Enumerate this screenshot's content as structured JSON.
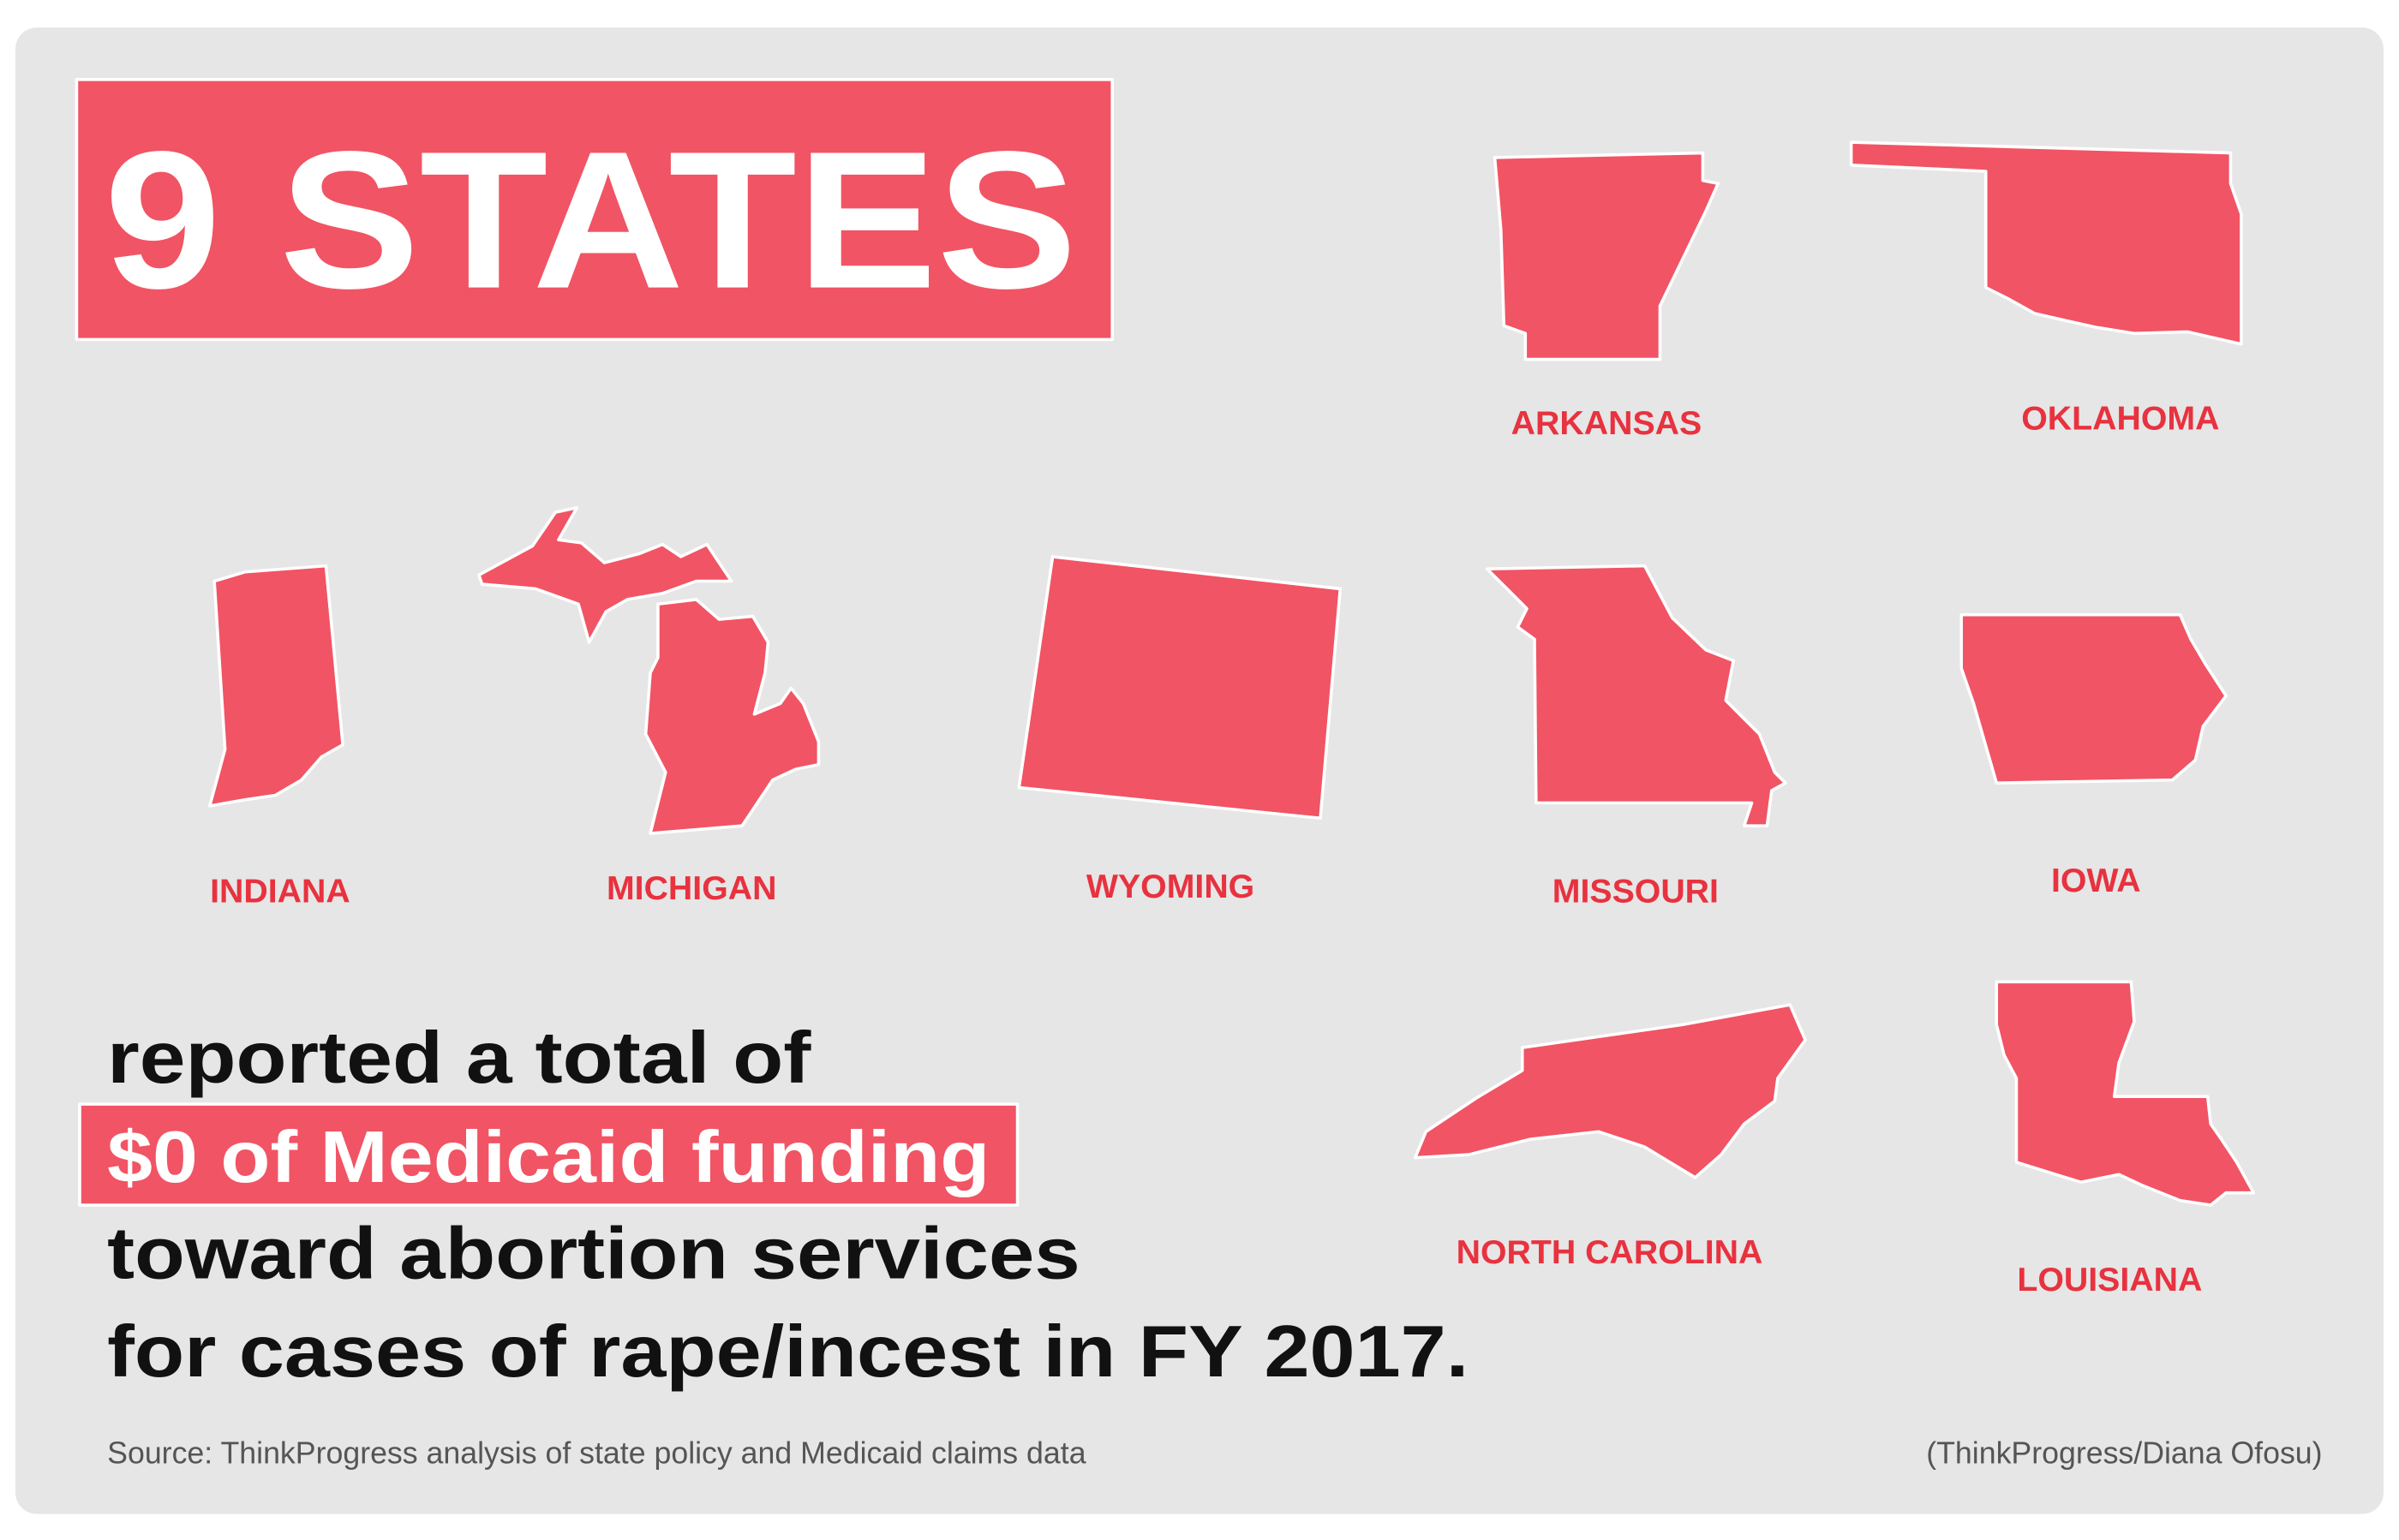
{
  "headline": "9 STATES",
  "body": {
    "line1": "reported a total of",
    "highlight": "$0 of Medicaid funding",
    "line3": "toward abortion services",
    "line4": "for cases of rape/incest in FY 2017."
  },
  "states": [
    "ARKANSAS",
    "OKLAHOMA",
    "INDIANA",
    "MICHIGAN",
    "WYOMING",
    "MISSOURI",
    "IOWA",
    "NORTH CAROLINA",
    "LOUISIANA"
  ],
  "footer": {
    "source": "Source: ThinkProgress analysis of state policy and Medicaid claims data",
    "credit": "(ThinkProgress/Diana Ofosu)"
  }
}
